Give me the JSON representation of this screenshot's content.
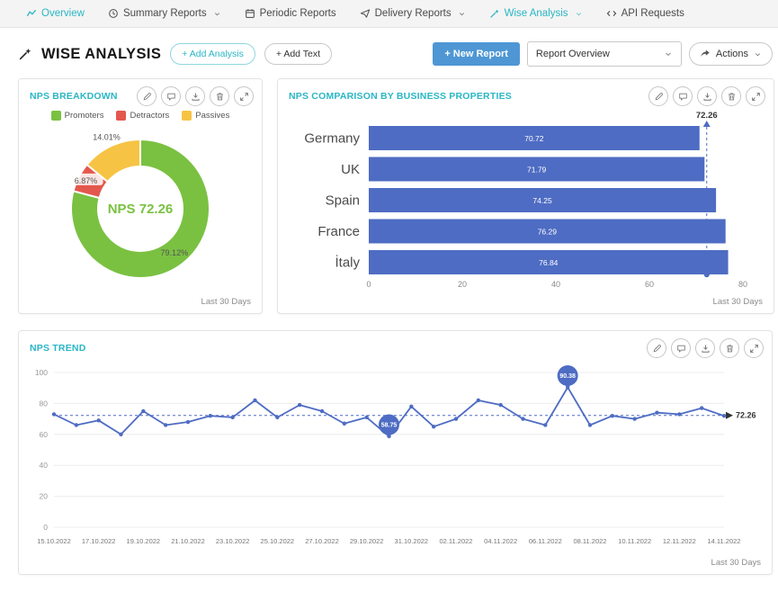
{
  "colors": {
    "accent": "#2ab6c5",
    "chart_blue": "#4e6cc3",
    "button_blue": "#4e97d4"
  },
  "nav": {
    "items": [
      {
        "label": "Overview",
        "icon": "chart-line",
        "active": true,
        "dropdown": false
      },
      {
        "label": "Summary Reports",
        "icon": "clock",
        "active": false,
        "dropdown": true
      },
      {
        "label": "Periodic Reports",
        "icon": "calendar",
        "active": false,
        "dropdown": false
      },
      {
        "label": "Delivery Reports",
        "icon": "send",
        "active": false,
        "dropdown": true
      },
      {
        "label": "Wise Analysis",
        "icon": "wand",
        "active": true,
        "dropdown": true
      },
      {
        "label": "API Requests",
        "icon": "api",
        "active": false,
        "dropdown": false
      }
    ]
  },
  "header": {
    "title": "WISE ANALYSIS",
    "add_analysis": "+ Add Analysis",
    "add_text": "+ Add Text",
    "new_report": "+ New Report",
    "report_select": "Report Overview",
    "actions": "Actions"
  },
  "card_toolbar_icons": [
    "edit",
    "comment",
    "download",
    "delete",
    "expand"
  ],
  "chart_data": [
    {
      "type": "pie",
      "title": "NPS BREAKDOWN",
      "center_label": "NPS 72.26",
      "center_color": "#7ac142",
      "slices": [
        {
          "label": "Promoters",
          "value": 79.12,
          "color": "#7ac142"
        },
        {
          "label": "Detractors",
          "value": 6.87,
          "color": "#e4574d"
        },
        {
          "label": "Passives",
          "value": 14.01,
          "color": "#f6c344"
        }
      ],
      "value_suffix": "%",
      "footer": "Last 30 Days"
    },
    {
      "type": "bar",
      "orientation": "horizontal",
      "title": "NPS COMPARISON BY BUSINESS PROPERTIES",
      "categories": [
        "Germany",
        "UK",
        "Spain",
        "France",
        "İtaly"
      ],
      "values": [
        70.72,
        71.79,
        74.25,
        76.29,
        76.84
      ],
      "xlim": [
        0,
        80
      ],
      "x_ticks": [
        0,
        20,
        40,
        60,
        80
      ],
      "bar_color": "#4e6cc3",
      "reference_line": {
        "value": 72.26,
        "label": "72.26"
      },
      "footer": "Last 30 Days"
    },
    {
      "type": "line",
      "title": "NPS TREND",
      "x_labels": [
        "15.10.2022",
        "17.10.2022",
        "19.10.2022",
        "21.10.2022",
        "23.10.2022",
        "25.10.2022",
        "27.10.2022",
        "29.10.2022",
        "31.10.2022",
        "02.11.2022",
        "04.11.2022",
        "06.11.2022",
        "08.11.2022",
        "10.11.2022",
        "12.11.2022",
        "14.11.2022"
      ],
      "values": [
        73,
        66,
        69,
        60,
        75,
        66,
        68,
        72,
        71,
        82,
        71,
        79,
        75,
        67,
        71,
        58.75,
        78,
        65,
        70,
        82,
        79,
        70,
        66,
        90.38,
        66,
        72,
        70,
        74,
        73,
        77,
        72
      ],
      "ylim": [
        0,
        100
      ],
      "y_ticks": [
        0,
        20,
        40,
        60,
        80,
        100
      ],
      "line_color": "#4e6cc3",
      "reference_line": {
        "value": 72.26,
        "label": "72.26"
      },
      "annotations": [
        {
          "index": 15,
          "label": "58.75"
        },
        {
          "index": 23,
          "label": "90.38"
        }
      ],
      "footer": "Last 30 Days"
    }
  ]
}
